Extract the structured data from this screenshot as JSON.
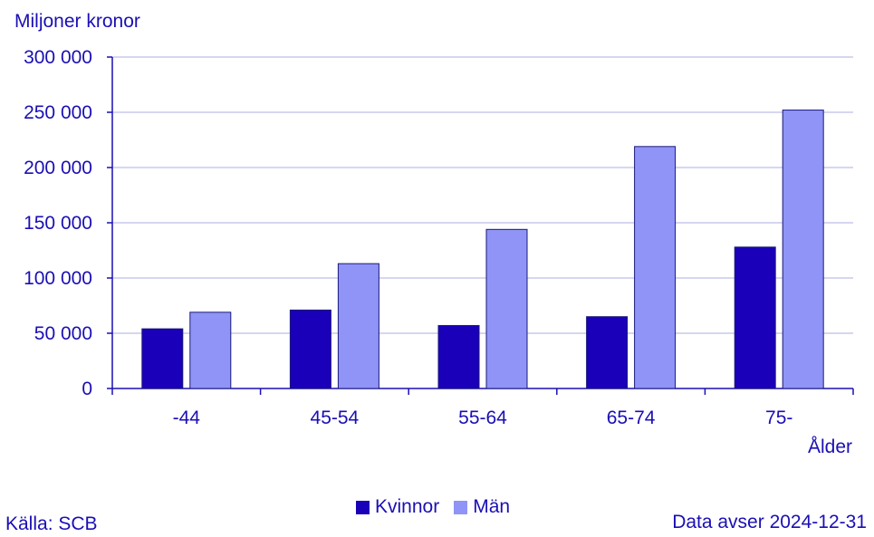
{
  "colors": {
    "text": "#1a0fb4",
    "kvinnor": "#1a00b8",
    "man": "#8f94f6",
    "grid": "#c9c9ee",
    "axis": "#1a0fb4"
  },
  "chart_data": {
    "type": "bar",
    "ylabel": "Miljoner kronor",
    "xlabel": "Ålder",
    "ylim": [
      0,
      300000
    ],
    "yticks": [
      0,
      50000,
      100000,
      150000,
      200000,
      250000,
      300000
    ],
    "ytick_labels": [
      "0",
      "50 000",
      "100 000",
      "150 000",
      "200 000",
      "250 000",
      "300 000"
    ],
    "categories": [
      "-44",
      "45-54",
      "55-64",
      "65-74",
      "75-"
    ],
    "series": [
      {
        "name": "Kvinnor",
        "values": [
          54000,
          71000,
          57000,
          65000,
          128000
        ]
      },
      {
        "name": "Män",
        "values": [
          69000,
          113000,
          144000,
          219000,
          252000
        ]
      }
    ],
    "grid": true,
    "legend_position": "bottom"
  },
  "footer": {
    "source": "Källa: SCB",
    "date": "Data avser 2024-12-31"
  }
}
